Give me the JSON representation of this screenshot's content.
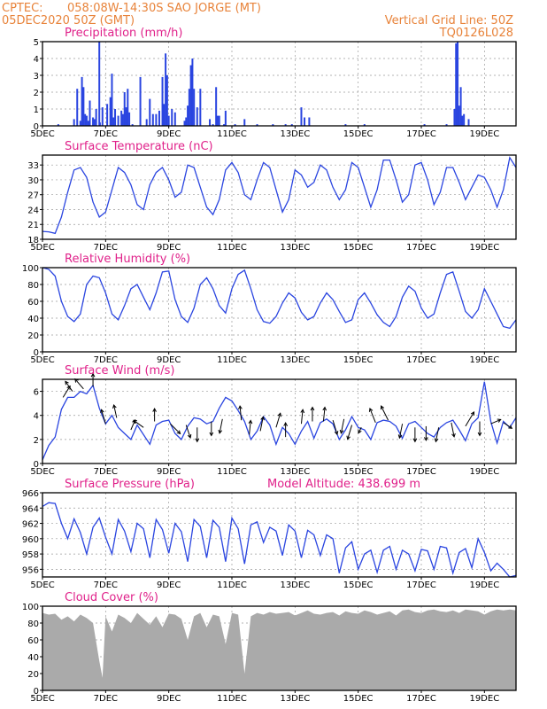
{
  "header": {
    "source_label": "CPTEC:",
    "location": "058:08W-14:30S  SAO JORGE (MT)",
    "run_date": "05DEC2020 50Z (GMT)",
    "vertical_grid_line": "Vertical Grid Line: 50Z",
    "code": "TQ0126L028"
  },
  "colors": {
    "header": "#e8833a",
    "panel_title": "#e0218a",
    "series_line": "#2a45e0",
    "cloud_fill": "#aaaaaa",
    "arrow": "#000000"
  },
  "x_axis": {
    "labels": [
      "5DEC",
      "7DEC",
      "9DEC",
      "11DEC",
      "13DEC",
      "15DEC",
      "17DEC",
      "19DEC"
    ],
    "label_days": [
      0,
      2,
      4,
      6,
      8,
      10,
      12,
      14
    ],
    "range_days": [
      0,
      15
    ]
  },
  "chart_data": [
    {
      "id": "precip",
      "type": "bar",
      "title": "Precipitation (mm/h)",
      "unit": "mm/h",
      "ylim": [
        0,
        5
      ],
      "yticks": [
        0,
        1,
        2,
        3,
        4,
        5
      ],
      "grid": true,
      "x_days": [
        0.5,
        1.0,
        1.1,
        1.2,
        1.25,
        1.3,
        1.35,
        1.4,
        1.45,
        1.5,
        1.6,
        1.65,
        1.7,
        1.8,
        1.82,
        1.9,
        2.05,
        2.15,
        2.2,
        2.25,
        2.3,
        2.4,
        2.5,
        2.55,
        2.6,
        2.65,
        2.7,
        2.75,
        2.85,
        3.1,
        3.3,
        3.4,
        3.5,
        3.6,
        3.7,
        3.8,
        3.85,
        3.9,
        3.95,
        4.0,
        4.1,
        4.2,
        4.5,
        4.55,
        4.6,
        4.65,
        4.7,
        4.75,
        4.8,
        4.9,
        5.0,
        5.3,
        5.4,
        5.5,
        5.55,
        5.6,
        5.75,
        5.8,
        6.1,
        6.4,
        6.8,
        7.3,
        7.7,
        7.9,
        8.2,
        8.3,
        8.45,
        9.6,
        10.2,
        12.1,
        12.8,
        13.05,
        13.1,
        13.15,
        13.2,
        13.25,
        13.3,
        13.35,
        13.5
      ],
      "values": [
        0.1,
        0.4,
        2.2,
        0.3,
        2.9,
        2.3,
        0.7,
        0.6,
        0.3,
        1.5,
        0.5,
        0.4,
        1.0,
        5.0,
        0.2,
        1.1,
        1.3,
        1.7,
        3.1,
        0.5,
        1.0,
        0.6,
        0.9,
        0.7,
        2.0,
        1.1,
        2.2,
        0.8,
        0.1,
        2.9,
        0.4,
        1.6,
        0.7,
        0.7,
        0.9,
        2.9,
        1.3,
        4.3,
        3.0,
        0.6,
        1.0,
        0.8,
        0.3,
        0.5,
        1.2,
        2.2,
        3.6,
        4.0,
        2.2,
        1.1,
        2.2,
        0.4,
        0.1,
        2.3,
        0.6,
        0.6,
        0.1,
        0.9,
        0.1,
        0.4,
        0.1,
        0.1,
        0.1,
        0.1,
        1.1,
        0.5,
        0.5,
        0.1,
        0.1,
        0.1,
        0.1,
        1.0,
        4.9,
        5.0,
        1.2,
        2.3,
        0.6,
        0.7,
        0.4
      ]
    },
    {
      "id": "temp",
      "type": "line",
      "title": "Surface Temperature (nC)",
      "unit": "nC",
      "ylim": [
        18,
        35
      ],
      "yticks": [
        18,
        21,
        24,
        27,
        30,
        33
      ],
      "grid": true,
      "x_days": [
        0,
        0.2,
        0.4,
        0.6,
        0.8,
        1.0,
        1.2,
        1.4,
        1.6,
        1.8,
        2.0,
        2.2,
        2.4,
        2.6,
        2.8,
        3.0,
        3.2,
        3.4,
        3.6,
        3.8,
        4.0,
        4.2,
        4.4,
        4.6,
        4.8,
        5.0,
        5.2,
        5.4,
        5.6,
        5.8,
        6.0,
        6.2,
        6.4,
        6.6,
        6.8,
        7.0,
        7.2,
        7.4,
        7.6,
        7.8,
        8.0,
        8.2,
        8.4,
        8.6,
        8.8,
        9.0,
        9.2,
        9.4,
        9.6,
        9.8,
        10.0,
        10.2,
        10.4,
        10.6,
        10.8,
        11.0,
        11.2,
        11.4,
        11.6,
        11.8,
        12.0,
        12.2,
        12.4,
        12.6,
        12.8,
        13.0,
        13.2,
        13.4,
        13.6,
        13.8,
        14.0,
        14.2,
        14.4,
        14.6,
        14.8,
        15.0
      ],
      "values": [
        19.6,
        19.5,
        19.2,
        22.5,
        27.5,
        32,
        32.5,
        30.5,
        25.5,
        22.5,
        23.5,
        28,
        32.5,
        31.5,
        29,
        25,
        24,
        29,
        31.5,
        32.5,
        30,
        26.5,
        27.5,
        33,
        32.5,
        28.5,
        24.5,
        23,
        26,
        32,
        33.5,
        31.5,
        27,
        26,
        30,
        33.5,
        32.5,
        28,
        23.5,
        26,
        32,
        31,
        28.5,
        29.5,
        33,
        32,
        28.5,
        26,
        28,
        33.5,
        32.5,
        28.5,
        24.5,
        28,
        34,
        34,
        30,
        25.5,
        27,
        33,
        33.5,
        30,
        25,
        27.5,
        32.5,
        32.5,
        29.5,
        26,
        28.5,
        31,
        30.5,
        28,
        24.5,
        28,
        34.5,
        32.5
      ]
    },
    {
      "id": "rh",
      "type": "line",
      "title": "Relative Humidity (%)",
      "unit": "%",
      "ylim": [
        0,
        100
      ],
      "yticks": [
        0,
        20,
        40,
        60,
        80,
        100
      ],
      "grid": true,
      "x_days": [
        0,
        0.2,
        0.4,
        0.6,
        0.8,
        1.0,
        1.2,
        1.4,
        1.6,
        1.8,
        2.0,
        2.2,
        2.4,
        2.6,
        2.8,
        3.0,
        3.2,
        3.4,
        3.6,
        3.8,
        4.0,
        4.2,
        4.4,
        4.6,
        4.8,
        5.0,
        5.2,
        5.4,
        5.6,
        5.8,
        6.0,
        6.2,
        6.4,
        6.6,
        6.8,
        7.0,
        7.2,
        7.4,
        7.6,
        7.8,
        8.0,
        8.2,
        8.4,
        8.6,
        8.8,
        9.0,
        9.2,
        9.4,
        9.6,
        9.8,
        10.0,
        10.2,
        10.4,
        10.6,
        10.8,
        11.0,
        11.2,
        11.4,
        11.6,
        11.8,
        12.0,
        12.2,
        12.4,
        12.6,
        12.8,
        13.0,
        13.2,
        13.4,
        13.6,
        13.8,
        14.0,
        14.2,
        14.4,
        14.6,
        14.8,
        15.0
      ],
      "values": [
        100,
        98,
        90,
        60,
        42,
        36,
        45,
        80,
        90,
        88,
        70,
        45,
        38,
        55,
        75,
        80,
        65,
        50,
        70,
        95,
        96,
        62,
        42,
        35,
        52,
        80,
        88,
        75,
        55,
        46,
        75,
        92,
        97,
        75,
        50,
        36,
        34,
        42,
        58,
        70,
        64,
        47,
        38,
        42,
        58,
        70,
        62,
        48,
        35,
        38,
        62,
        70,
        58,
        44,
        35,
        30,
        42,
        65,
        78,
        72,
        52,
        40,
        45,
        70,
        92,
        95,
        72,
        48,
        40,
        50,
        75,
        60,
        45,
        30,
        28,
        38
      ]
    },
    {
      "id": "wind",
      "type": "line",
      "title": "Surface Wind (m/s)",
      "unit": "m/s",
      "ylim": [
        0,
        7
      ],
      "yticks": [
        0,
        2,
        4,
        6
      ],
      "grid": true,
      "x_days": [
        0,
        0.2,
        0.4,
        0.6,
        0.8,
        1.0,
        1.2,
        1.4,
        1.6,
        1.8,
        2.0,
        2.2,
        2.4,
        2.6,
        2.8,
        3.0,
        3.2,
        3.4,
        3.6,
        3.8,
        4.0,
        4.2,
        4.4,
        4.6,
        4.8,
        5.0,
        5.2,
        5.4,
        5.6,
        5.8,
        6.0,
        6.2,
        6.4,
        6.6,
        6.8,
        7.0,
        7.2,
        7.4,
        7.6,
        7.8,
        8.0,
        8.2,
        8.4,
        8.6,
        8.8,
        9.0,
        9.2,
        9.4,
        9.6,
        9.8,
        10.0,
        10.2,
        10.4,
        10.6,
        10.8,
        11.0,
        11.2,
        11.4,
        11.6,
        11.8,
        12.0,
        12.2,
        12.4,
        12.6,
        12.8,
        13.0,
        13.2,
        13.4,
        13.6,
        13.8,
        14.0,
        14.2,
        14.4,
        14.6,
        14.8,
        15.0
      ],
      "values": [
        0.3,
        1.5,
        2.2,
        4.5,
        5.5,
        5.5,
        6.0,
        5.8,
        6.5,
        4.6,
        3.3,
        4.0,
        3.0,
        2.5,
        2.0,
        3.2,
        2.4,
        1.6,
        3.2,
        3.5,
        3.6,
        2.5,
        2.0,
        3.1,
        3.8,
        3.7,
        3.3,
        3.5,
        4.6,
        5.5,
        5.2,
        4.4,
        3.5,
        2.0,
        2.7,
        3.9,
        3.2,
        1.6,
        3.0,
        2.5,
        1.6,
        2.7,
        3.5,
        2.1,
        3.4,
        3.7,
        3.3,
        2.0,
        2.8,
        3.9,
        3.0,
        2.8,
        2.0,
        3.4,
        3.6,
        3.5,
        3.1,
        2.1,
        3.3,
        3.5,
        3.0,
        2.5,
        2.2,
        3.0,
        3.4,
        3.6,
        2.8,
        1.9,
        3.3,
        3.8,
        6.8,
        3.5,
        1.7,
        3.5,
        3.0,
        3.8
      ]
    },
    {
      "id": "pressure",
      "type": "line",
      "title": "Surface Pressure (hPa)",
      "subtitle": "Model Altitude: 438.699  m",
      "unit": "hPa",
      "ylim": [
        955,
        966
      ],
      "yticks": [
        956,
        958,
        960,
        962,
        964,
        966
      ],
      "grid": true,
      "x_days": [
        0,
        0.2,
        0.4,
        0.6,
        0.8,
        1.0,
        1.2,
        1.4,
        1.6,
        1.8,
        2.0,
        2.2,
        2.4,
        2.6,
        2.8,
        3.0,
        3.2,
        3.4,
        3.6,
        3.8,
        4.0,
        4.2,
        4.4,
        4.6,
        4.8,
        5.0,
        5.2,
        5.4,
        5.6,
        5.8,
        6.0,
        6.2,
        6.4,
        6.6,
        6.8,
        7.0,
        7.2,
        7.4,
        7.6,
        7.8,
        8.0,
        8.2,
        8.4,
        8.6,
        8.8,
        9.0,
        9.2,
        9.4,
        9.6,
        9.8,
        10.0,
        10.2,
        10.4,
        10.6,
        10.8,
        11.0,
        11.2,
        11.4,
        11.6,
        11.8,
        12.0,
        12.2,
        12.4,
        12.6,
        12.8,
        13.0,
        13.2,
        13.4,
        13.6,
        13.8,
        14.0,
        14.2,
        14.4,
        14.6,
        14.8,
        15.0
      ],
      "values": [
        964.2,
        964.7,
        964.6,
        962.0,
        960.0,
        962.6,
        960.8,
        958.0,
        961.5,
        962.7,
        960.2,
        958.0,
        962.5,
        961.0,
        958.3,
        962.0,
        961.3,
        957.5,
        962.5,
        961.2,
        958.1,
        962.0,
        960.9,
        957.0,
        962.5,
        961.6,
        957.5,
        962.4,
        961.5,
        957.0,
        962.7,
        961.3,
        956.7,
        961.8,
        962.2,
        959.5,
        961.5,
        961.0,
        957.8,
        961.8,
        961.0,
        957.5,
        961.1,
        960.5,
        957.8,
        960.5,
        960.0,
        955.5,
        958.8,
        959.6,
        956.0,
        958.0,
        958.5,
        955.6,
        958.5,
        959.0,
        956.0,
        958.5,
        958.0,
        955.8,
        958.6,
        958.4,
        956.0,
        959.0,
        958.8,
        955.5,
        958.2,
        958.7,
        956.2,
        960.0,
        958.2,
        955.8,
        956.8,
        956.0,
        955.0,
        955.2
      ]
    },
    {
      "id": "cloud",
      "type": "area",
      "title": "Cloud Cover (%)",
      "unit": "%",
      "ylim": [
        0,
        100
      ],
      "yticks": [
        0,
        20,
        40,
        60,
        80,
        100
      ],
      "grid": true,
      "x_days": [
        0,
        0.2,
        0.4,
        0.6,
        0.8,
        1.0,
        1.2,
        1.4,
        1.6,
        1.8,
        1.9,
        2.0,
        2.2,
        2.4,
        2.6,
        2.8,
        3.0,
        3.2,
        3.4,
        3.6,
        3.8,
        4.0,
        4.2,
        4.4,
        4.6,
        4.8,
        5.0,
        5.2,
        5.4,
        5.6,
        5.8,
        6.0,
        6.2,
        6.4,
        6.6,
        6.8,
        7.0,
        7.2,
        7.4,
        7.6,
        7.8,
        8.0,
        8.2,
        8.4,
        8.6,
        8.8,
        9.0,
        9.2,
        9.4,
        9.6,
        9.8,
        10.0,
        10.2,
        10.4,
        10.6,
        10.8,
        11.0,
        11.2,
        11.4,
        11.6,
        11.8,
        12.0,
        12.2,
        12.4,
        12.6,
        12.8,
        13.0,
        13.2,
        13.4,
        13.6,
        13.8,
        14.0,
        14.2,
        14.4,
        14.6,
        14.8,
        15.0
      ],
      "values": [
        92,
        90,
        91,
        84,
        88,
        82,
        90,
        86,
        80,
        35,
        15,
        88,
        70,
        90,
        86,
        80,
        92,
        85,
        78,
        88,
        75,
        91,
        90,
        85,
        60,
        88,
        92,
        75,
        90,
        88,
        55,
        92,
        90,
        20,
        88,
        92,
        90,
        93,
        91,
        92,
        93,
        89,
        92,
        95,
        91,
        90,
        92,
        93,
        89,
        94,
        92,
        91,
        95,
        93,
        90,
        92,
        94,
        89,
        95,
        96,
        93,
        92,
        95,
        96,
        94,
        93,
        95,
        92,
        96,
        95,
        94,
        90,
        94,
        96,
        95,
        96,
        95
      ]
    }
  ],
  "wind_vectors": {
    "x_days": [
      0.65,
      0.95,
      1.3,
      1.6,
      2.0,
      2.35,
      2.8,
      3.2,
      3.55,
      4.05,
      4.55,
      4.9,
      5.35,
      5.7,
      6.3,
      6.55,
      6.9,
      7.4,
      7.7,
      8.2,
      8.55,
      8.9,
      9.2,
      9.55,
      9.8,
      10.1,
      10.55,
      10.95,
      11.4,
      11.8,
      12.15,
      12.55,
      12.95,
      13.4,
      13.85,
      14.2,
      14.6
    ],
    "speed": [
      5.5,
      6.0,
      6.2,
      6.4,
      3.3,
      3.8,
      2.8,
      3.0,
      3.5,
      3.3,
      3.2,
      3.0,
      3.5,
      3.7,
      3.6,
      2.4,
      2.7,
      3.0,
      2.2,
      3.3,
      3.5,
      3.5,
      3.6,
      3.7,
      3.2,
      3.0,
      3.4,
      3.6,
      3.3,
      3.0,
      3.1,
      3.0,
      3.4,
      3.1,
      3.5,
      3.3,
      3.4
    ],
    "dx": [
      0.5,
      -0.5,
      -0.6,
      0.0,
      -0.3,
      -0.2,
      0.3,
      -0.7,
      0.0,
      0.7,
      0.3,
      0.0,
      0.0,
      -0.2,
      -0.1,
      0.1,
      0.2,
      0.3,
      0.0,
      0.1,
      0.0,
      0.1,
      0.3,
      -0.2,
      -0.3,
      -0.2,
      -0.4,
      -0.5,
      -0.2,
      0.0,
      0.0,
      -0.2,
      0.2,
      0.6,
      0.0,
      0.7,
      0.6
    ],
    "dy": [
      0.8,
      0.7,
      0.7,
      0.9,
      1.0,
      0.9,
      0.7,
      0.5,
      0.9,
      -0.7,
      -0.9,
      -1.0,
      -1.0,
      -1.0,
      1.0,
      1.0,
      1.0,
      1.0,
      1.0,
      1.0,
      1.0,
      1.0,
      -1.0,
      -1.0,
      -1.0,
      -0.4,
      1.0,
      1.0,
      -1.0,
      -1.0,
      -1.0,
      -1.0,
      -1.0,
      1.0,
      -1.0,
      0.3,
      -0.4
    ]
  }
}
